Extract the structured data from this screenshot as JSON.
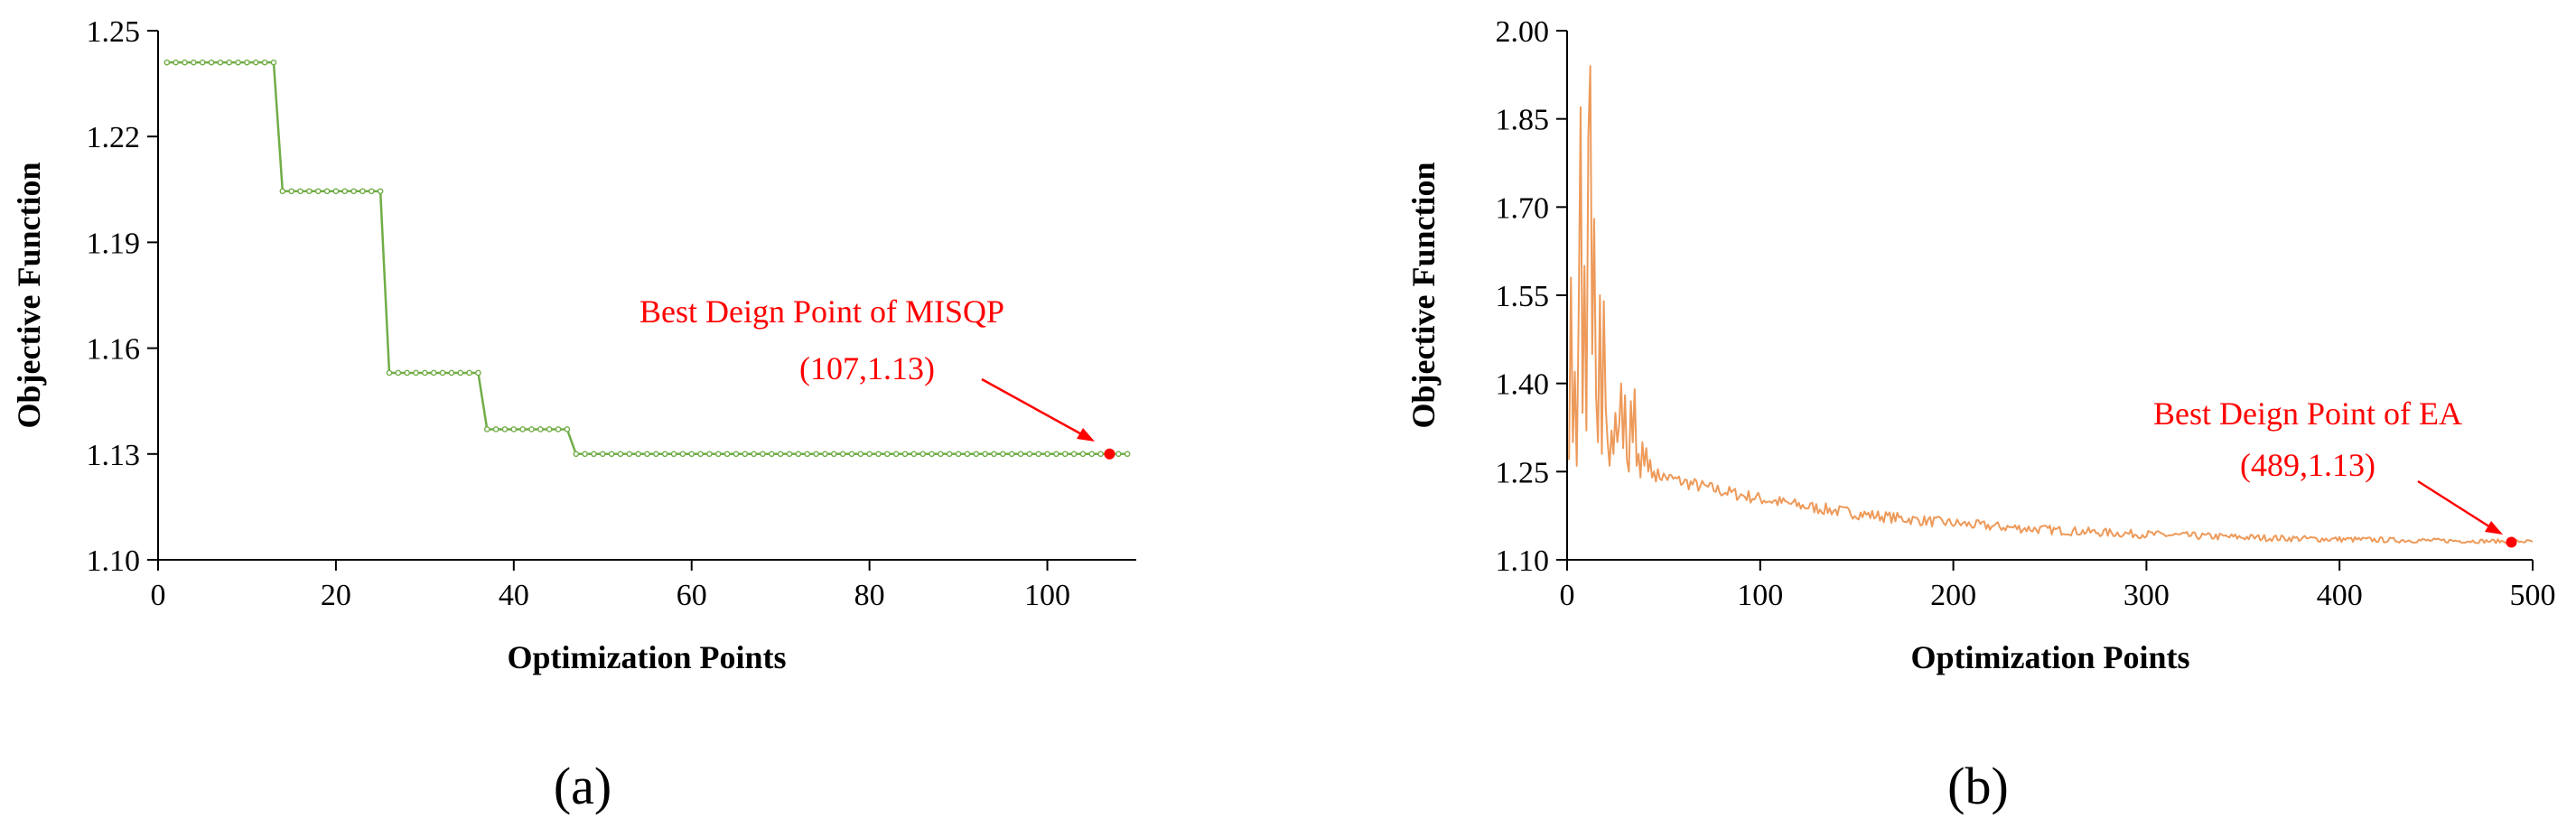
{
  "colors": {
    "series_a": "#70ad47",
    "series_b": "#ed9a5a",
    "annotation": "#ff0000",
    "axis": "#000000"
  },
  "panel_labels": {
    "a": "(a)",
    "b": "(b)"
  },
  "chart_data": [
    {
      "id": "a",
      "type": "line",
      "title": "",
      "xlabel": "Optimization Points",
      "ylabel": "Objective Function",
      "xlim": [
        0,
        110
      ],
      "ylim": [
        1.1,
        1.25
      ],
      "xticks": [
        0,
        20,
        40,
        60,
        80,
        100
      ],
      "yticks": [
        1.1,
        1.13,
        1.16,
        1.19,
        1.22,
        1.25
      ],
      "xtick_labels": [
        "0",
        "20",
        "40",
        "60",
        "80",
        "100"
      ],
      "ytick_labels": [
        "1.10",
        "1.13",
        "1.16",
        "1.19",
        "1.22",
        "1.25"
      ],
      "grid": false,
      "series": [
        {
          "name": "MISQP",
          "marker": "circle-small",
          "segments": [
            {
              "x_start": 1,
              "x_end": 13,
              "y": 1.241
            },
            {
              "x_start": 14,
              "x_end": 25,
              "y": 1.2045
            },
            {
              "x_start": 26,
              "x_end": 36,
              "y": 1.153
            },
            {
              "x_start": 37,
              "x_end": 46,
              "y": 1.137
            },
            {
              "x_start": 47,
              "x_end": 109,
              "y": 1.13
            }
          ]
        }
      ],
      "annotation": {
        "line1": "Best Deign Point of MISQP",
        "line2": "(107,1.13)",
        "x": 107,
        "y": 1.13
      }
    },
    {
      "id": "b",
      "type": "line",
      "title": "",
      "xlabel": "Optimization Points",
      "ylabel": "Objective Function",
      "xlim": [
        0,
        500
      ],
      "ylim": [
        1.1,
        2.0
      ],
      "xticks": [
        0,
        100,
        200,
        300,
        400,
        500
      ],
      "yticks": [
        1.1,
        1.25,
        1.4,
        1.55,
        1.7,
        1.85,
        2.0
      ],
      "xtick_labels": [
        "0",
        "100",
        "200",
        "300",
        "400",
        "500"
      ],
      "ytick_labels": [
        "1.10",
        "1.25",
        "1.40",
        "1.55",
        "1.70",
        "1.85",
        "2.00"
      ],
      "grid": false,
      "series": [
        {
          "name": "EA",
          "early_points": [
            [
              1,
              1.27
            ],
            [
              2,
              1.58
            ],
            [
              3,
              1.3
            ],
            [
              4,
              1.42
            ],
            [
              5,
              1.26
            ],
            [
              6,
              1.52
            ],
            [
              7,
              1.87
            ],
            [
              8,
              1.35
            ],
            [
              9,
              1.6
            ],
            [
              10,
              1.32
            ],
            [
              11,
              1.82
            ],
            [
              12,
              1.94
            ],
            [
              13,
              1.45
            ],
            [
              14,
              1.68
            ],
            [
              15,
              1.38
            ],
            [
              16,
              1.3
            ],
            [
              17,
              1.55
            ],
            [
              18,
              1.28
            ],
            [
              19,
              1.54
            ],
            [
              20,
              1.36
            ],
            [
              21,
              1.3
            ],
            [
              22,
              1.26
            ],
            [
              23,
              1.32
            ],
            [
              24,
              1.28
            ],
            [
              25,
              1.35
            ],
            [
              26,
              1.3
            ],
            [
              27,
              1.33
            ],
            [
              28,
              1.4
            ],
            [
              29,
              1.29
            ],
            [
              30,
              1.38
            ],
            [
              31,
              1.27
            ],
            [
              32,
              1.25
            ],
            [
              33,
              1.37
            ],
            [
              34,
              1.3
            ],
            [
              35,
              1.39
            ],
            [
              36,
              1.26
            ],
            [
              37,
              1.28
            ],
            [
              38,
              1.24
            ],
            [
              39,
              1.3
            ],
            [
              40,
              1.26
            ],
            [
              41,
              1.29
            ],
            [
              42,
              1.25
            ],
            [
              43,
              1.27
            ],
            [
              44,
              1.24
            ],
            [
              45,
              1.25
            ]
          ],
          "trend": {
            "x_start": 46,
            "x_end": 500,
            "y_start": 1.245,
            "y_end": 1.128,
            "decay_rate": 0.008,
            "y_floor": 1.128,
            "noise_amplitude_start": 0.012
          }
        }
      ],
      "annotation": {
        "line1": "Best Deign Point of EA",
        "line2": "(489,1.13)",
        "x": 489,
        "y": 1.13
      }
    }
  ]
}
